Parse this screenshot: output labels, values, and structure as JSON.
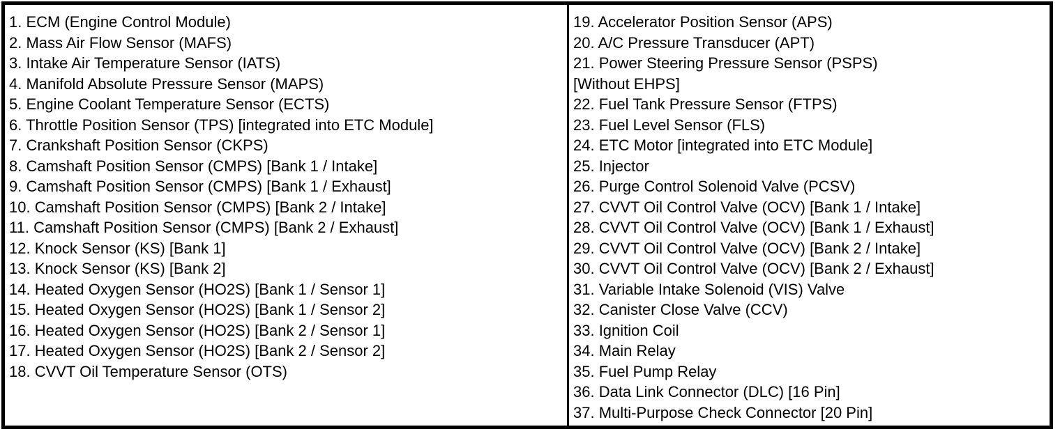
{
  "legend": {
    "colors": {
      "text": "#000000",
      "border": "#000000",
      "background": "#ffffff"
    },
    "left_column_lines": [
      "1. ECM (Engine Control Module)",
      "2. Mass Air Flow Sensor (MAFS)",
      "3. Intake Air Temperature Sensor (IATS)",
      "4. Manifold Absolute Pressure Sensor (MAPS)",
      "5. Engine Coolant Temperature Sensor (ECTS)",
      "6. Throttle Position Sensor (TPS) [integrated into ETC Module]",
      "7. Crankshaft Position Sensor (CKPS)",
      "8. Camshaft Position Sensor (CMPS) [Bank 1 / Intake]",
      "9. Camshaft Position Sensor (CMPS) [Bank 1 / Exhaust]",
      "10. Camshaft Position Sensor (CMPS) [Bank 2 / Intake]",
      "11. Camshaft Position Sensor (CMPS) [Bank 2 / Exhaust]",
      "12. Knock Sensor (KS) [Bank 1]",
      "13. Knock Sensor (KS) [Bank 2]",
      "14. Heated Oxygen Sensor (HO2S) [Bank 1 / Sensor 1]",
      "15. Heated Oxygen Sensor (HO2S) [Bank 1 / Sensor 2]",
      "16. Heated Oxygen Sensor (HO2S) [Bank 2 / Sensor 1]",
      "17. Heated Oxygen Sensor (HO2S) [Bank 2 / Sensor 2]",
      "18. CVVT Oil Temperature Sensor (OTS)"
    ],
    "right_column_lines": [
      "19. Accelerator Position Sensor (APS)",
      "20. A/C Pressure Transducer (APT)",
      "21. Power Steering Pressure Sensor (PSPS)",
      "[Without EHPS]",
      "22. Fuel Tank Pressure Sensor (FTPS)",
      "23. Fuel Level Sensor (FLS)",
      "24. ETC Motor [integrated into ETC Module]",
      "25. Injector",
      "26. Purge Control Solenoid Valve (PCSV)",
      "27. CVVT Oil Control Valve (OCV) [Bank 1 / Intake]",
      "28. CVVT Oil Control Valve (OCV) [Bank 1 / Exhaust]",
      "29. CVVT Oil Control Valve (OCV) [Bank 2 / Intake]",
      "30. CVVT Oil Control Valve (OCV) [Bank 2 / Exhaust]",
      "31. Variable Intake Solenoid (VIS) Valve",
      "32. Canister Close Valve (CCV)",
      "33. Ignition Coil",
      "34. Main Relay",
      "35. Fuel Pump Relay",
      "36. Data Link Connector (DLC) [16 Pin]",
      "37. Multi-Purpose Check Connector [20 Pin]"
    ]
  }
}
